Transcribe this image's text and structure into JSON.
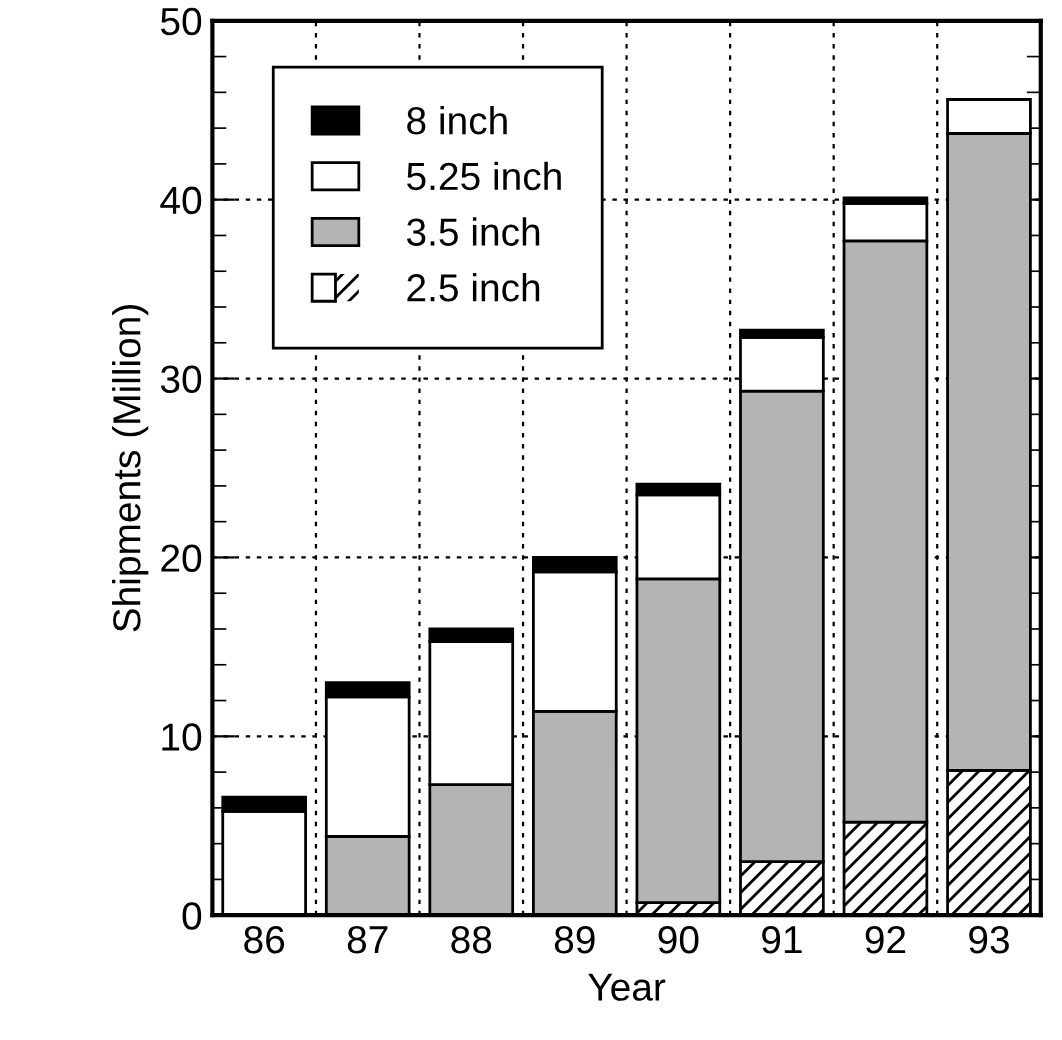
{
  "chart_data": {
    "type": "bar",
    "xlabel": "Year",
    "ylabel": "Shipments (Million)",
    "categories": [
      "86",
      "87",
      "88",
      "89",
      "90",
      "91",
      "92",
      "93"
    ],
    "stacked": true,
    "series": [
      {
        "name": "2.5 inch",
        "color": "#ffffff",
        "values": [
          0,
          0,
          0,
          0,
          0.7,
          3.0,
          5.2,
          8.1
        ]
      },
      {
        "name": "3.5 inch",
        "color": "#b4b4b4",
        "values": [
          null,
          4.4,
          7.3,
          11.4,
          18.1,
          26.3,
          32.5,
          35.6
        ]
      },
      {
        "name": "5.25 inch",
        "color": "#ffffff",
        "values": [
          5.8,
          7.8,
          8.0,
          7.8,
          4.7,
          3.0,
          2.1,
          1.9
        ]
      },
      {
        "name": "8 inch",
        "color": "#000000",
        "values": [
          0.8,
          0.8,
          0.7,
          0.8,
          0.6,
          0.4,
          0.3,
          null
        ]
      }
    ],
    "ylim": [
      0,
      50
    ],
    "yticks": [
      0,
      10,
      20,
      30,
      40,
      50
    ],
    "grid": true,
    "legend": "top left"
  }
}
